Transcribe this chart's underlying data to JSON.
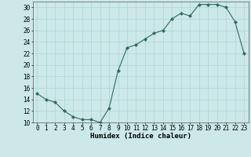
{
  "x": [
    0,
    1,
    2,
    3,
    4,
    5,
    6,
    7,
    8,
    9,
    10,
    11,
    12,
    13,
    14,
    15,
    16,
    17,
    18,
    19,
    20,
    21,
    22,
    23
  ],
  "y": [
    15,
    14,
    13.5,
    12,
    11,
    10.5,
    10.5,
    10,
    12.5,
    19,
    23,
    23.5,
    24.5,
    25.5,
    26,
    28,
    29,
    28.5,
    30.5,
    30.5,
    30.5,
    30,
    27.5,
    22
  ],
  "line_color": "#2e6b5e",
  "marker_color": "#2e6b5e",
  "bg_color": "#cce8e8",
  "grid_color": "#aed4d4",
  "xlabel": "Humidex (Indice chaleur)",
  "ylim": [
    10,
    31
  ],
  "xlim": [
    -0.5,
    23.5
  ],
  "yticks": [
    10,
    12,
    14,
    16,
    18,
    20,
    22,
    24,
    26,
    28,
    30
  ],
  "xticks": [
    0,
    1,
    2,
    3,
    4,
    5,
    6,
    7,
    8,
    9,
    10,
    11,
    12,
    13,
    14,
    15,
    16,
    17,
    18,
    19,
    20,
    21,
    22,
    23
  ],
  "label_fontsize": 6.5,
  "tick_fontsize": 5.5
}
